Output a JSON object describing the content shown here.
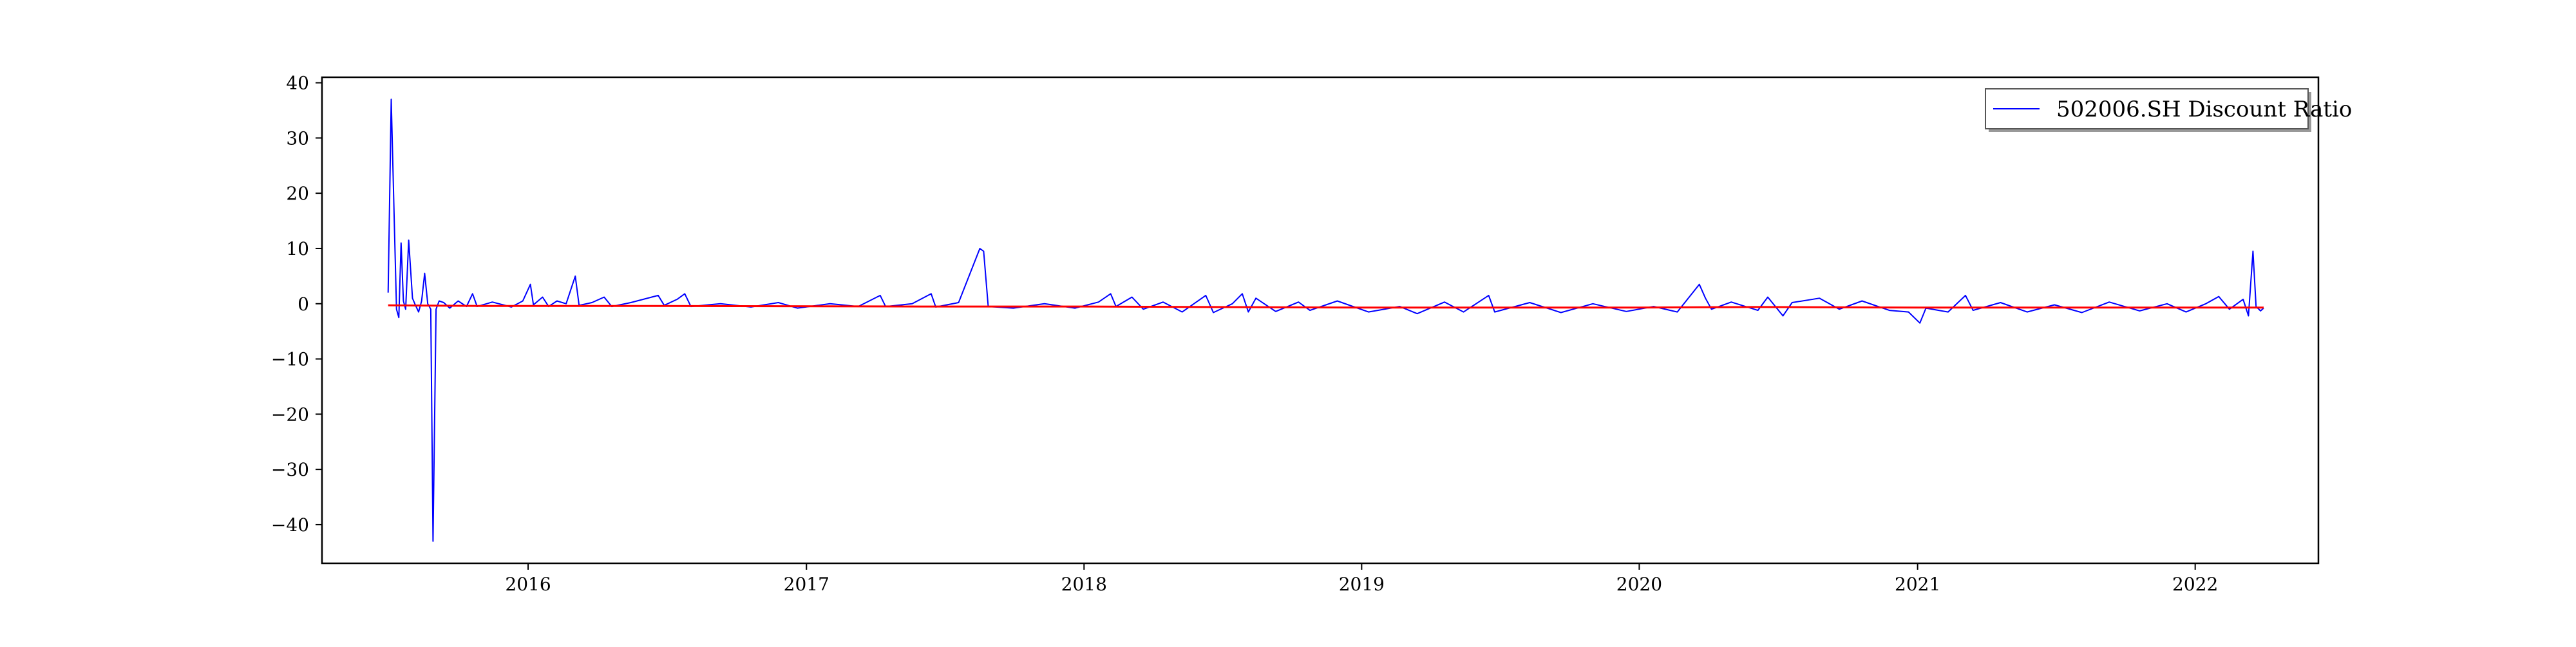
{
  "chart_data": {
    "type": "line",
    "title": "",
    "xlabel": "",
    "ylabel": "",
    "xlim": [
      "2015-04-05",
      "2022-06-12"
    ],
    "ylim": [
      -47,
      41
    ],
    "grid": false,
    "legend": {
      "placement": "top-right",
      "entries": [
        "502006.SH Discount Ratio"
      ]
    },
    "x_ticks": [
      "2016",
      "2017",
      "2018",
      "2019",
      "2020",
      "2021",
      "2022"
    ],
    "y_ticks": [
      "40",
      "30",
      "20",
      "10",
      "0",
      "−10",
      "−20",
      "−30",
      "−40"
    ],
    "y_tick_values": [
      40,
      30,
      20,
      10,
      0,
      -10,
      -20,
      -30,
      -40
    ],
    "series": [
      {
        "name": "502006.SH Discount Ratio",
        "color": "#0000ff",
        "points": [
          [
            "2015-07-01",
            2.0
          ],
          [
            "2015-07-05",
            37.0
          ],
          [
            "2015-07-09",
            15.0
          ],
          [
            "2015-07-12",
            -1.0
          ],
          [
            "2015-07-15",
            -2.5
          ],
          [
            "2015-07-18",
            11.0
          ],
          [
            "2015-07-21",
            0.5
          ],
          [
            "2015-07-24",
            -1.0
          ],
          [
            "2015-07-28",
            11.5
          ],
          [
            "2015-08-02",
            1.0
          ],
          [
            "2015-08-05",
            0.0
          ],
          [
            "2015-08-10",
            -1.5
          ],
          [
            "2015-08-14",
            0.5
          ],
          [
            "2015-08-18",
            5.5
          ],
          [
            "2015-08-22",
            0.0
          ],
          [
            "2015-08-26",
            -1.0
          ],
          [
            "2015-08-29",
            -43.0
          ],
          [
            "2015-09-02",
            -1.0
          ],
          [
            "2015-09-06",
            0.5
          ],
          [
            "2015-09-12",
            0.2
          ],
          [
            "2015-09-20",
            -0.8
          ],
          [
            "2015-10-01",
            0.5
          ],
          [
            "2015-10-12",
            -0.5
          ],
          [
            "2015-10-20",
            1.8
          ],
          [
            "2015-10-26",
            -0.5
          ],
          [
            "2015-11-15",
            0.3
          ],
          [
            "2015-12-10",
            -0.6
          ],
          [
            "2015-12-25",
            0.5
          ],
          [
            "2016-01-04",
            3.5
          ],
          [
            "2016-01-08",
            -0.2
          ],
          [
            "2016-01-20",
            1.2
          ],
          [
            "2016-01-28",
            -0.5
          ],
          [
            "2016-02-08",
            0.5
          ],
          [
            "2016-02-20",
            0.0
          ],
          [
            "2016-03-03",
            5.0
          ],
          [
            "2016-03-08",
            -0.3
          ],
          [
            "2016-03-25",
            0.2
          ],
          [
            "2016-04-10",
            1.2
          ],
          [
            "2016-04-20",
            -0.5
          ],
          [
            "2016-05-15",
            0.2
          ],
          [
            "2016-06-20",
            1.5
          ],
          [
            "2016-06-28",
            -0.3
          ],
          [
            "2016-07-15",
            0.8
          ],
          [
            "2016-07-25",
            1.8
          ],
          [
            "2016-08-02",
            -0.5
          ],
          [
            "2016-09-10",
            0.0
          ],
          [
            "2016-10-20",
            -0.6
          ],
          [
            "2016-11-25",
            0.2
          ],
          [
            "2016-12-20",
            -0.8
          ],
          [
            "2017-02-01",
            0.0
          ],
          [
            "2017-03-10",
            -0.5
          ],
          [
            "2017-04-08",
            1.5
          ],
          [
            "2017-04-15",
            -0.5
          ],
          [
            "2017-05-20",
            0.0
          ],
          [
            "2017-06-14",
            1.8
          ],
          [
            "2017-06-20",
            -0.6
          ],
          [
            "2017-07-20",
            0.2
          ],
          [
            "2017-08-17",
            10.0
          ],
          [
            "2017-08-22",
            9.5
          ],
          [
            "2017-08-28",
            -0.5
          ],
          [
            "2017-09-30",
            -0.8
          ],
          [
            "2017-11-10",
            0.0
          ],
          [
            "2017-12-20",
            -0.8
          ],
          [
            "2018-01-20",
            0.3
          ],
          [
            "2018-02-05",
            1.8
          ],
          [
            "2018-02-12",
            -0.5
          ],
          [
            "2018-03-05",
            1.2
          ],
          [
            "2018-03-20",
            -1.0
          ],
          [
            "2018-04-15",
            0.3
          ],
          [
            "2018-05-10",
            -1.5
          ],
          [
            "2018-06-10",
            1.5
          ],
          [
            "2018-06-20",
            -1.6
          ],
          [
            "2018-07-15",
            0.0
          ],
          [
            "2018-07-28",
            1.8
          ],
          [
            "2018-08-05",
            -1.5
          ],
          [
            "2018-08-15",
            1.0
          ],
          [
            "2018-09-10",
            -1.4
          ],
          [
            "2018-10-10",
            0.3
          ],
          [
            "2018-10-25",
            -1.2
          ],
          [
            "2018-11-30",
            0.5
          ],
          [
            "2019-01-10",
            -1.5
          ],
          [
            "2019-02-20",
            -0.5
          ],
          [
            "2019-03-15",
            -1.8
          ],
          [
            "2019-04-20",
            0.3
          ],
          [
            "2019-05-15",
            -1.5
          ],
          [
            "2019-06-17",
            1.5
          ],
          [
            "2019-06-25",
            -1.5
          ],
          [
            "2019-08-10",
            0.2
          ],
          [
            "2019-09-20",
            -1.6
          ],
          [
            "2019-11-01",
            0.0
          ],
          [
            "2019-12-15",
            -1.4
          ],
          [
            "2020-01-20",
            -0.5
          ],
          [
            "2020-02-20",
            -1.5
          ],
          [
            "2020-03-20",
            3.5
          ],
          [
            "2020-03-28",
            1.0
          ],
          [
            "2020-04-05",
            -1.0
          ],
          [
            "2020-05-01",
            0.3
          ],
          [
            "2020-06-05",
            -1.2
          ],
          [
            "2020-06-18",
            1.2
          ],
          [
            "2020-07-08",
            -2.2
          ],
          [
            "2020-07-20",
            0.2
          ],
          [
            "2020-08-25",
            1.0
          ],
          [
            "2020-09-20",
            -1.0
          ],
          [
            "2020-10-20",
            0.5
          ],
          [
            "2020-11-25",
            -1.2
          ],
          [
            "2020-12-20",
            -1.5
          ],
          [
            "2021-01-04",
            -3.5
          ],
          [
            "2021-01-12",
            -0.8
          ],
          [
            "2021-02-10",
            -1.5
          ],
          [
            "2021-03-05",
            1.5
          ],
          [
            "2021-03-15",
            -1.2
          ],
          [
            "2021-04-20",
            0.2
          ],
          [
            "2021-05-25",
            -1.5
          ],
          [
            "2021-06-30",
            -0.2
          ],
          [
            "2021-08-05",
            -1.6
          ],
          [
            "2021-09-10",
            0.3
          ],
          [
            "2021-10-20",
            -1.3
          ],
          [
            "2021-11-25",
            0.0
          ],
          [
            "2021-12-20",
            -1.5
          ],
          [
            "2022-01-15",
            0.0
          ],
          [
            "2022-02-01",
            1.3
          ],
          [
            "2022-02-15",
            -1.0
          ],
          [
            "2022-03-05",
            0.8
          ],
          [
            "2022-03-12",
            -2.2
          ],
          [
            "2022-03-18",
            9.5
          ],
          [
            "2022-03-22",
            -0.5
          ],
          [
            "2022-03-28",
            -1.3
          ],
          [
            "2022-04-01",
            -0.8
          ]
        ]
      },
      {
        "name": "",
        "color": "#ff0000",
        "points": [
          [
            "2015-07-01",
            -0.3
          ],
          [
            "2015-11-01",
            -0.4
          ],
          [
            "2016-06-01",
            -0.4
          ],
          [
            "2017-06-01",
            -0.5
          ],
          [
            "2018-01-01",
            -0.5
          ],
          [
            "2018-06-01",
            -0.6
          ],
          [
            "2019-01-01",
            -0.7
          ],
          [
            "2019-06-01",
            -0.7
          ],
          [
            "2020-01-01",
            -0.7
          ],
          [
            "2020-06-01",
            -0.6
          ],
          [
            "2021-01-01",
            -0.7
          ],
          [
            "2021-06-01",
            -0.7
          ],
          [
            "2022-01-01",
            -0.7
          ],
          [
            "2022-04-01",
            -0.7
          ]
        ]
      }
    ]
  }
}
